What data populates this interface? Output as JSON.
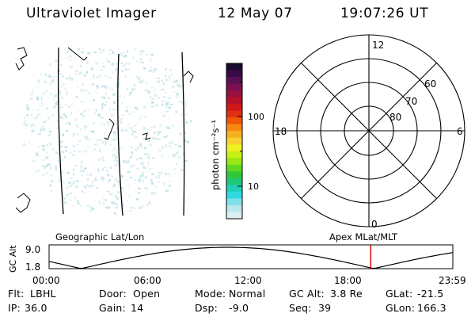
{
  "header": {
    "instrument": "Ultraviolet Imager",
    "date": "12 May 07",
    "time": "19:07:26 UT"
  },
  "colorbar": {
    "unit_label": "photon cm⁻²s⁻¹",
    "ticks": [
      "100",
      "10"
    ],
    "colors_top_to_bottom": [
      "#1a0a30",
      "#3a0a48",
      "#5a1050",
      "#7a1050",
      "#9a1040",
      "#b8102a",
      "#d01818",
      "#e03010",
      "#f05808",
      "#f88810",
      "#f8b020",
      "#f8d030",
      "#f0f020",
      "#c8f018",
      "#98e818",
      "#60d820",
      "#30c838",
      "#20c878",
      "#20d0b8",
      "#30d8e0",
      "#80e0e8",
      "#b8e8ec",
      "#dceef0"
    ]
  },
  "polar_plot": {
    "mlt_labels": {
      "top": "12",
      "left": "18",
      "right": "6",
      "bottom": "0"
    },
    "lat_labels": [
      "60",
      "70",
      "80"
    ]
  },
  "map_labels": {
    "left": "Geographic Lat/Lon",
    "right": "Apex MLat/MLT"
  },
  "altitude_plot": {
    "ylabel": "GC Alt",
    "yticks": [
      "9.0",
      "1.8"
    ],
    "xticks": [
      "00:00",
      "06:00",
      "12:00",
      "18:00",
      "23:59"
    ],
    "current_time_hours": 19.12,
    "marker_color": "#e00000"
  },
  "status": {
    "row1": [
      {
        "label": "Flt:",
        "value": "LBHL"
      },
      {
        "label": "Door:",
        "value": "Open"
      },
      {
        "label": "Mode:",
        "value": "Normal"
      },
      {
        "label": "GC Alt:",
        "value": "3.8 Re"
      },
      {
        "label": "GLat:",
        "value": "-21.5"
      }
    ],
    "row2": [
      {
        "label": "IP:",
        "value": "36.0"
      },
      {
        "label": "Gain:",
        "value": "14"
      },
      {
        "label": "Dsp:",
        "value": "-9.0"
      },
      {
        "label": "Seq:",
        "value": "39"
      },
      {
        "label": "GLon:",
        "value": "166.3"
      }
    ]
  }
}
